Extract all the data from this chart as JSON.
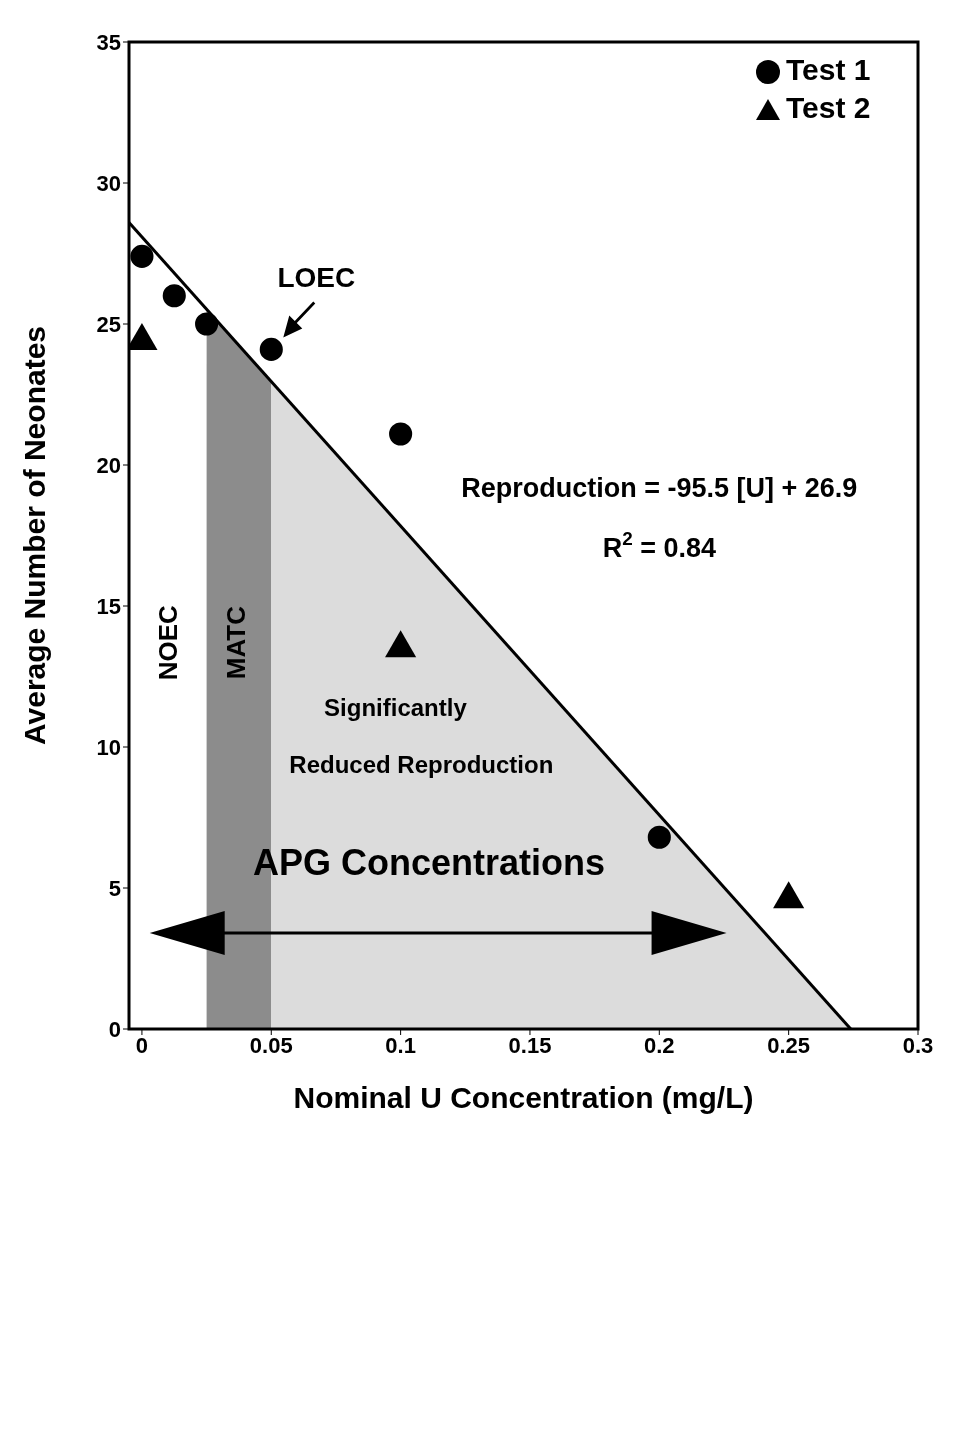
{
  "chart_data": {
    "type": "scatter",
    "xlabel": "Nominal U Concentration (mg/L)",
    "ylabel": "Average Number of Neonates",
    "xlim": [
      -0.005,
      0.3
    ],
    "ylim": [
      0,
      35
    ],
    "xticks": [
      0,
      0.05,
      0.1,
      0.15,
      0.2,
      0.25,
      0.3
    ],
    "yticks": [
      0,
      5,
      10,
      15,
      20,
      25,
      30,
      35
    ],
    "legend": "top right",
    "series": [
      {
        "type": "area",
        "color": "#8c8c8c",
        "x": [
          0.025,
          0.05
        ],
        "values": [
          25.5,
          23.0
        ]
      },
      {
        "type": "area",
        "color": "#dcdcdc",
        "x": [
          0.05,
          0.274
        ],
        "values": [
          23.0,
          0
        ]
      },
      {
        "type": "line",
        "color": "#000000",
        "x": [
          -0.005,
          0.274
        ],
        "values": [
          28.6,
          0
        ]
      },
      {
        "name": "Test 1",
        "marker": "circle",
        "color": "#000000",
        "x": [
          0,
          0.0125,
          0.025,
          0.05,
          0.1,
          0.2
        ],
        "values": [
          27.4,
          26.0,
          25.0,
          24.1,
          21.1,
          6.8
        ]
      },
      {
        "name": "Test 2",
        "marker": "triangle",
        "color": "#000000",
        "x": [
          0,
          0.1,
          0.25
        ],
        "values": [
          24.4,
          13.5,
          4.6
        ]
      }
    ],
    "annotations": [
      "Reproduction = -95.5 [U] + 26.9",
      "R$^{2}$ = 0.84",
      "Significantly",
      "Reduced Reproduction",
      "APG Concentrations",
      "NOEC",
      "MATC",
      {
        "text": "LOEC",
        "x": 0.05,
        "y": 24.1
      }
    ]
  }
}
